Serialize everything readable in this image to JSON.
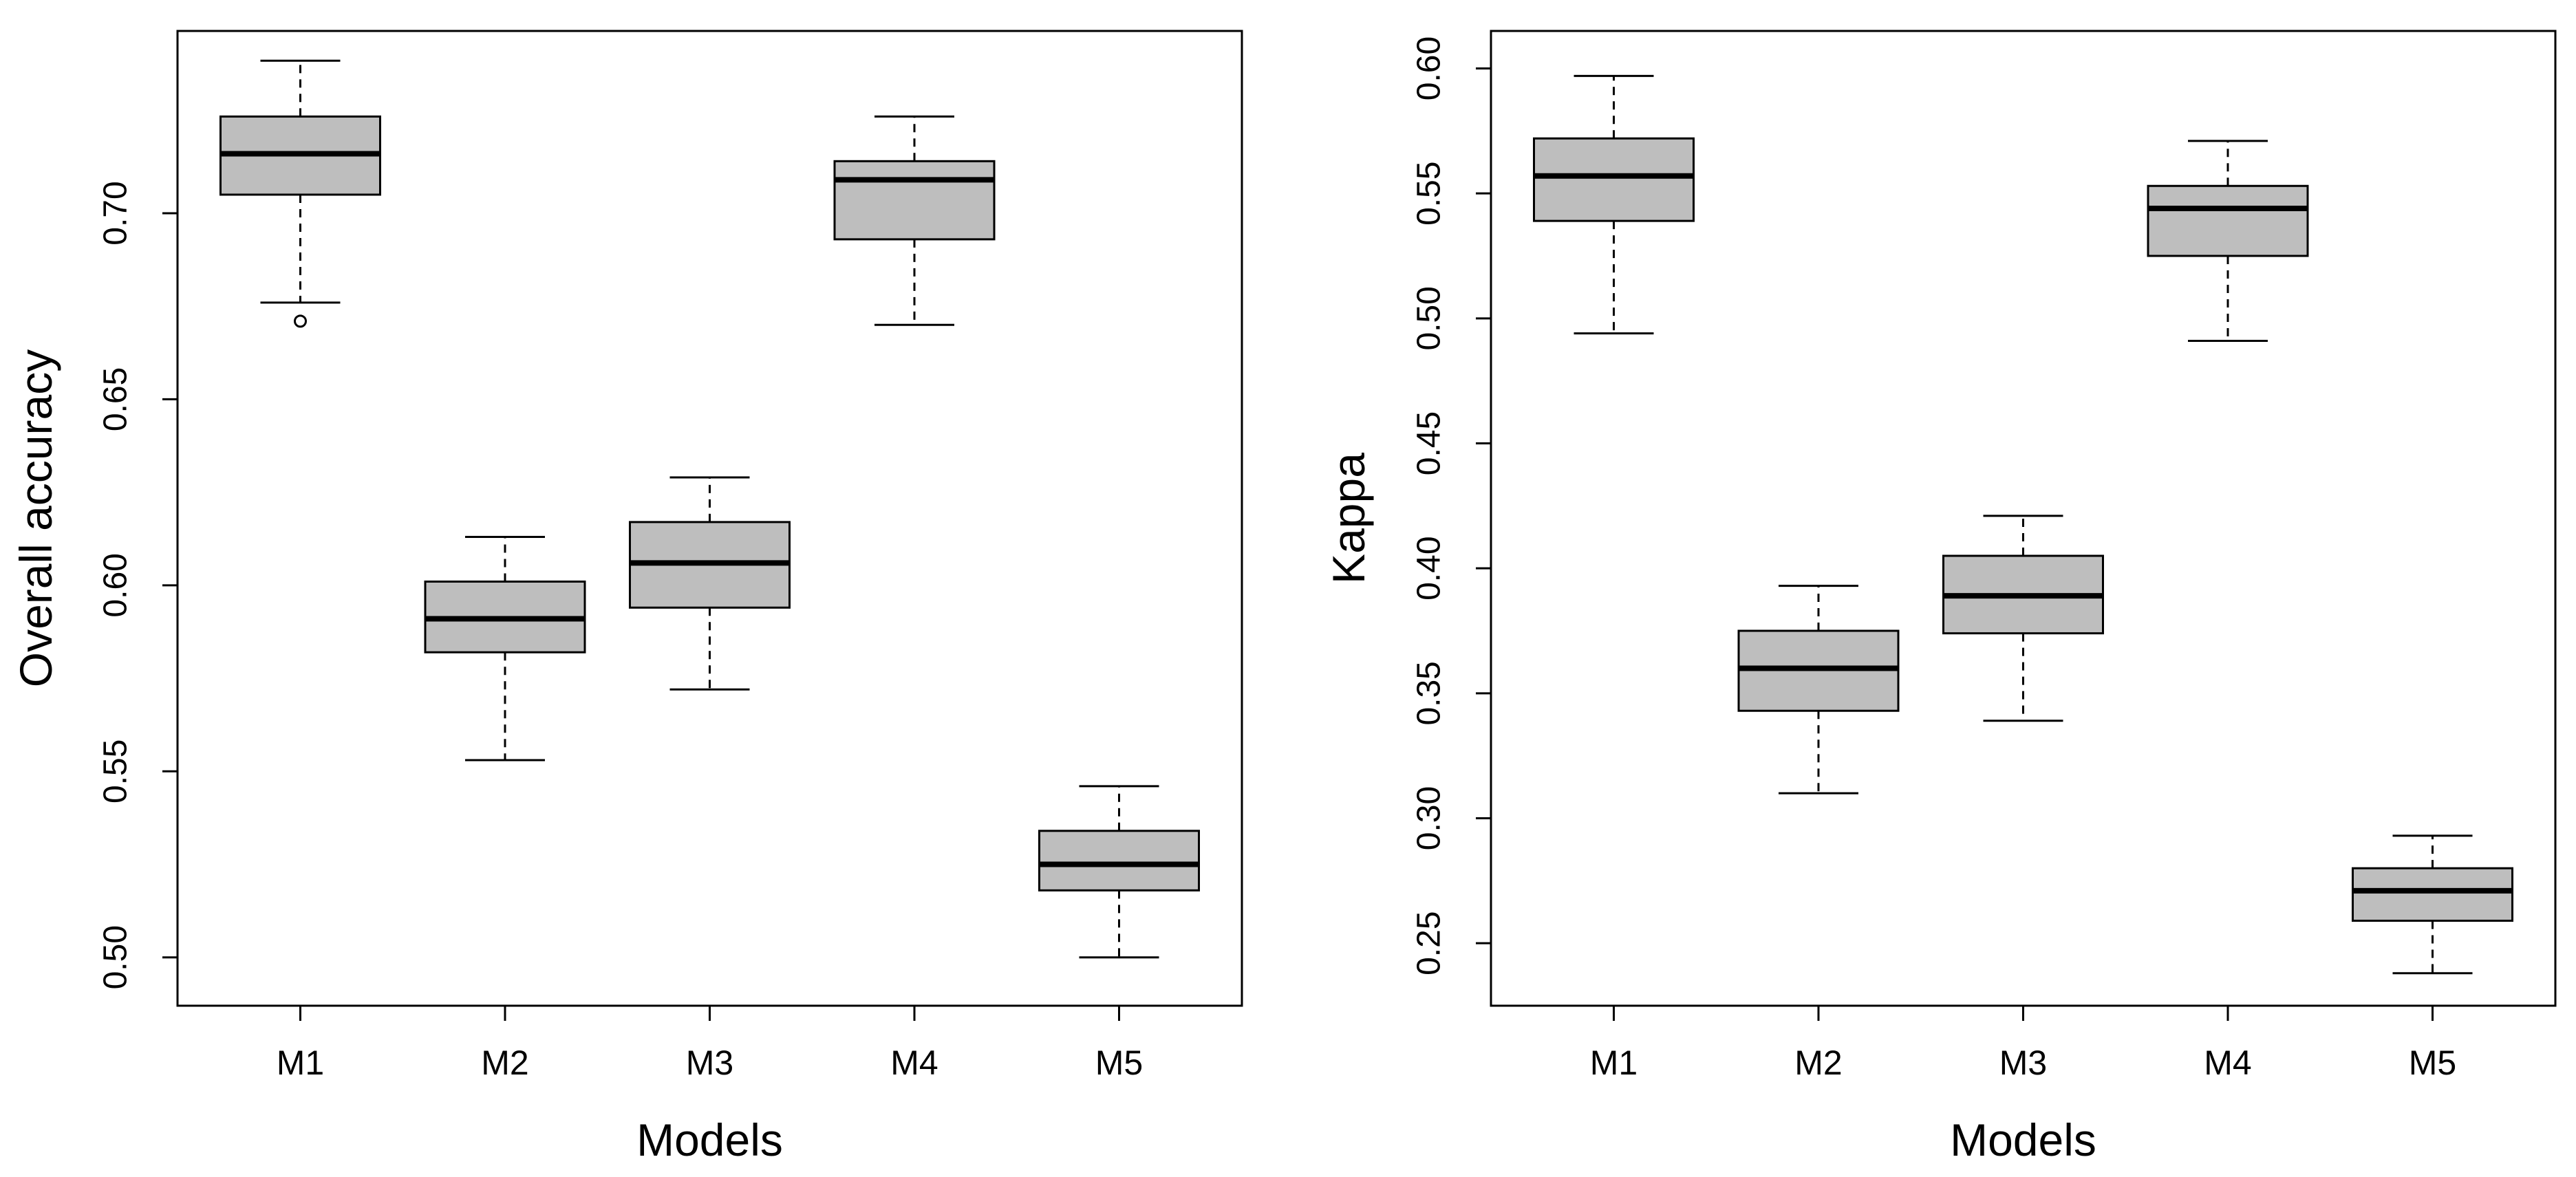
{
  "chart_data": [
    {
      "type": "boxplot",
      "xlabel": "Models",
      "ylabel": "Overall accuracy",
      "ylim": [
        0.487,
        0.749
      ],
      "yticks": [
        0.5,
        0.55,
        0.6,
        0.65,
        0.7
      ],
      "ytick_labels": [
        "0.50",
        "0.55",
        "0.60",
        "0.65",
        "0.70"
      ],
      "grid": false,
      "categories": [
        "M1",
        "M2",
        "M3",
        "M4",
        "M5"
      ],
      "boxes": [
        {
          "name": "M1",
          "whisker_low": 0.676,
          "q1": 0.705,
          "median": 0.716,
          "q3": 0.726,
          "whisker_high": 0.741,
          "outliers": [
            0.671
          ]
        },
        {
          "name": "M2",
          "whisker_low": 0.553,
          "q1": 0.582,
          "median": 0.591,
          "q3": 0.601,
          "whisker_high": 0.613,
          "outliers": []
        },
        {
          "name": "M3",
          "whisker_low": 0.572,
          "q1": 0.594,
          "median": 0.606,
          "q3": 0.617,
          "whisker_high": 0.629,
          "outliers": []
        },
        {
          "name": "M4",
          "whisker_low": 0.67,
          "q1": 0.693,
          "median": 0.709,
          "q3": 0.714,
          "whisker_high": 0.726,
          "outliers": []
        },
        {
          "name": "M5",
          "whisker_low": 0.5,
          "q1": 0.518,
          "median": 0.525,
          "q3": 0.534,
          "whisker_high": 0.546,
          "outliers": []
        }
      ]
    },
    {
      "type": "boxplot",
      "xlabel": "Models",
      "ylabel": "Kappa",
      "ylim": [
        0.225,
        0.615
      ],
      "yticks": [
        0.25,
        0.3,
        0.35,
        0.4,
        0.45,
        0.5,
        0.55,
        0.6
      ],
      "ytick_labels": [
        "0.25",
        "0.30",
        "0.35",
        "0.40",
        "0.45",
        "0.50",
        "0.55",
        "0.60"
      ],
      "grid": false,
      "categories": [
        "M1",
        "M2",
        "M3",
        "M4",
        "M5"
      ],
      "boxes": [
        {
          "name": "M1",
          "whisker_low": 0.494,
          "q1": 0.539,
          "median": 0.557,
          "q3": 0.572,
          "whisker_high": 0.597,
          "outliers": []
        },
        {
          "name": "M2",
          "whisker_low": 0.31,
          "q1": 0.343,
          "median": 0.36,
          "q3": 0.375,
          "whisker_high": 0.393,
          "outliers": []
        },
        {
          "name": "M3",
          "whisker_low": 0.339,
          "q1": 0.374,
          "median": 0.389,
          "q3": 0.405,
          "whisker_high": 0.421,
          "outliers": []
        },
        {
          "name": "M4",
          "whisker_low": 0.491,
          "q1": 0.525,
          "median": 0.544,
          "q3": 0.553,
          "whisker_high": 0.571,
          "outliers": []
        },
        {
          "name": "M5",
          "whisker_low": 0.238,
          "q1": 0.259,
          "median": 0.271,
          "q3": 0.28,
          "whisker_high": 0.293,
          "outliers": []
        }
      ]
    }
  ],
  "colors": {
    "box_fill": "#bebebe",
    "stroke": "#000000",
    "background": "#ffffff"
  }
}
